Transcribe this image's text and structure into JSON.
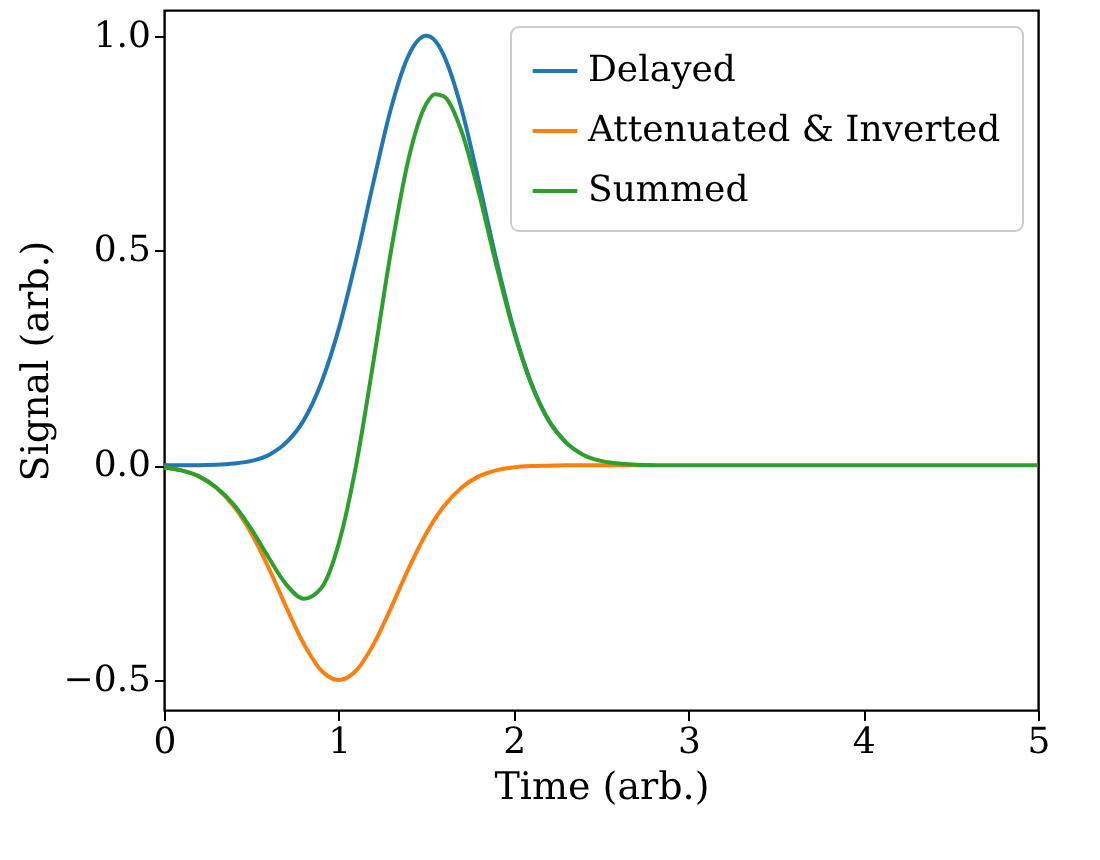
{
  "chart_data": {
    "type": "line",
    "xlabel": "Time (arb.)",
    "ylabel": "Signal (arb.)",
    "x": [
      0,
      0.1,
      0.2,
      0.3,
      0.4,
      0.5,
      0.6,
      0.7,
      0.8,
      0.9,
      1.0,
      1.1,
      1.2,
      1.3,
      1.4,
      1.5,
      1.55,
      1.6,
      1.7,
      1.8,
      1.9,
      2.0,
      2.1,
      2.2,
      2.3,
      2.4,
      2.5,
      2.6,
      2.8,
      3.0,
      5.0
    ],
    "series": [
      {
        "name": "Delayed",
        "color": "#1f77b4",
        "values": [
          0,
          0,
          0,
          0.001,
          0.004,
          0.01,
          0.024,
          0.053,
          0.105,
          0.192,
          0.318,
          0.48,
          0.662,
          0.833,
          0.955,
          1.0,
          0.989,
          0.955,
          0.833,
          0.662,
          0.48,
          0.318,
          0.192,
          0.105,
          0.053,
          null,
          null,
          null,
          null,
          null,
          null
        ]
      },
      {
        "name": "Attenuated & Inverted",
        "color": "#ff7f0e",
        "values": [
          -0.005,
          -0.012,
          -0.026,
          -0.053,
          -0.096,
          -0.159,
          -0.24,
          -0.331,
          -0.416,
          -0.478,
          -0.5,
          -0.478,
          -0.416,
          -0.331,
          -0.24,
          -0.159,
          -0.125,
          -0.096,
          -0.053,
          -0.026,
          -0.012,
          -0.005,
          -0.002,
          -0.001,
          0,
          0,
          0,
          0,
          0,
          null,
          null
        ]
      },
      {
        "name": "Summed",
        "color": "#2ca02c",
        "values": [
          -0.005,
          -0.012,
          -0.026,
          -0.052,
          -0.092,
          -0.149,
          -0.216,
          -0.278,
          -0.311,
          -0.286,
          -0.182,
          0.002,
          0.246,
          0.502,
          0.715,
          0.841,
          0.864,
          0.859,
          0.78,
          0.636,
          0.468,
          0.313,
          0.19,
          0.104,
          0.053,
          0.024,
          0.01,
          0.004,
          0,
          0,
          0
        ]
      }
    ],
    "xlim": [
      0,
      5
    ],
    "xticks": [
      0,
      1,
      2,
      3,
      4,
      5
    ],
    "ylim": [
      -0.57,
      1.06
    ],
    "yticks": [
      {
        "value": -0.5,
        "label": "−0.5"
      },
      {
        "value": 0,
        "label": "0.0"
      },
      0.5,
      {
        "value": 1.0,
        "label": "1.0"
      }
    ],
    "legend": "top right",
    "grid": false
  }
}
